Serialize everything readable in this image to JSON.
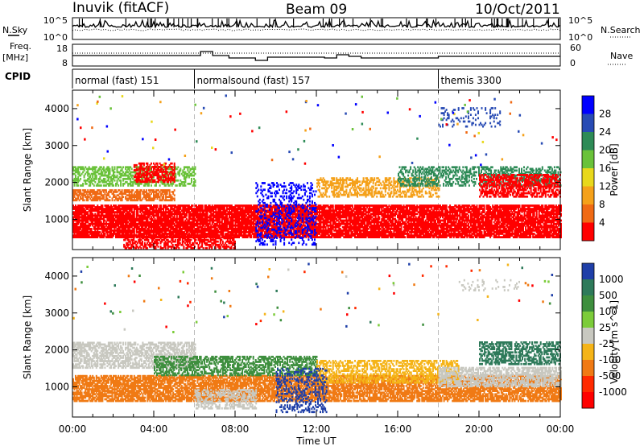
{
  "header": {
    "station": "Inuvik (fitACF)",
    "beam": "Beam 09",
    "date": "10/Oct/2011"
  },
  "status_panels": {
    "nsky_label": "N.Sky",
    "nsearch_label": "N.Search",
    "freq_label_line1": "Freq.",
    "freq_label_line2": "[MHz]",
    "nave_label": "Nave",
    "cpid_label": "CPID",
    "noise_left_ticks": [
      "10^5",
      "10^0"
    ],
    "noise_right_ticks": [
      "10^5",
      "10^0"
    ],
    "freq_left_ticks": [
      "18",
      "8"
    ],
    "freq_right_ticks": [
      "60",
      "0"
    ],
    "cpid_segments": [
      {
        "label": "normal (fast) 151",
        "start_hour": 0,
        "end_hour": 6
      },
      {
        "label": "normalsound (fast) 157",
        "start_hour": 6,
        "end_hour": 18
      },
      {
        "label": "themis 3300",
        "start_hour": 18,
        "end_hour": 24
      }
    ]
  },
  "chart_data": [
    {
      "type": "heatmap",
      "title": "",
      "xlabel": "Time UT",
      "ylabel": "Slant Range [km]",
      "x_ticks": [
        "00:00",
        "04:00",
        "08:00",
        "12:00",
        "16:00",
        "20:00",
        "00:00"
      ],
      "x_range_hours": [
        0,
        24
      ],
      "y_ticks": [
        1000,
        2000,
        3000,
        4000
      ],
      "ylim": [
        180,
        4500
      ],
      "colorbar": {
        "label": "Power [dB]",
        "ticks": [
          "4",
          "8",
          "12",
          "16",
          "20",
          "24",
          "28"
        ],
        "colors": [
          "#0000ff",
          "#284bb4",
          "#2e8b57",
          "#6ac23a",
          "#e8d81c",
          "#f5a11a",
          "#f06a14",
          "#ff0000"
        ]
      },
      "series": [
        {
          "name": "",
          "start_hour": 0,
          "end_hour": 24,
          "range_lo": 500,
          "range_hi": 1400,
          "color": "#ff0000",
          "density": 0.85
        },
        {
          "name": "",
          "start_hour": 0,
          "end_hour": 5,
          "range_lo": 1500,
          "range_hi": 1800,
          "color": "#f06a14",
          "density": 0.65
        },
        {
          "name": "",
          "start_hour": 0,
          "end_hour": 6,
          "range_lo": 1900,
          "range_hi": 2400,
          "color": "#6ac23a",
          "density": 0.5
        },
        {
          "name": "",
          "start_hour": 3,
          "end_hour": 5,
          "range_lo": 2000,
          "range_hi": 2500,
          "color": "#ff0000",
          "density": 0.55
        },
        {
          "name": "",
          "start_hour": 2.5,
          "end_hour": 8,
          "range_lo": 200,
          "range_hi": 600,
          "color": "#ff0000",
          "density": 0.55
        },
        {
          "name": "",
          "start_hour": 9,
          "end_hour": 12,
          "range_lo": 300,
          "range_hi": 2000,
          "color": "#0000ff",
          "density": 0.25
        },
        {
          "name": "",
          "start_hour": 12,
          "end_hour": 18,
          "range_lo": 1600,
          "range_hi": 2100,
          "color": "#f5a11a",
          "density": 0.45
        },
        {
          "name": "",
          "start_hour": 16,
          "end_hour": 24,
          "range_lo": 1900,
          "range_hi": 2400,
          "color": "#2e8b57",
          "density": 0.45
        },
        {
          "name": "",
          "start_hour": 20,
          "end_hour": 24,
          "range_lo": 1600,
          "range_hi": 2200,
          "color": "#ff0000",
          "density": 0.6
        },
        {
          "name": "",
          "start_hour": 18,
          "end_hour": 21,
          "range_lo": 3500,
          "range_hi": 4000,
          "color": "#284bb4",
          "density": 0.15
        }
      ]
    },
    {
      "type": "heatmap",
      "title": "",
      "xlabel": "Time UT",
      "ylabel": "Slant Range [km]",
      "x_ticks": [
        "00:00",
        "04:00",
        "08:00",
        "12:00",
        "16:00",
        "20:00",
        "00:00"
      ],
      "x_range_hours": [
        0,
        24
      ],
      "y_ticks": [
        1000,
        2000,
        3000,
        4000
      ],
      "ylim": [
        180,
        4500
      ],
      "colorbar": {
        "label": "Velocity [m s^-1]",
        "ticks": [
          "1000",
          "500",
          "100",
          "25",
          "-25",
          "-100",
          "-500",
          "-1000"
        ],
        "colors": [
          "#1f3fa8",
          "#2e7a5a",
          "#3e8f3e",
          "#7ccc3a",
          "#c8c8c0",
          "#f5b418",
          "#f07a14",
          "#ff2a00",
          "#ff0000"
        ]
      },
      "series": [
        {
          "name": "",
          "start_hour": 0,
          "end_hour": 24,
          "range_lo": 600,
          "range_hi": 1300,
          "color": "#f07a14",
          "density": 0.75
        },
        {
          "name": "",
          "start_hour": 0,
          "end_hour": 6,
          "range_lo": 1500,
          "range_hi": 2200,
          "color": "#c8c8c0",
          "density": 0.6
        },
        {
          "name": "",
          "start_hour": 4,
          "end_hour": 12,
          "range_lo": 1300,
          "range_hi": 1800,
          "color": "#3e8f3e",
          "density": 0.55
        },
        {
          "name": "",
          "start_hour": 6,
          "end_hour": 9,
          "range_lo": 400,
          "range_hi": 900,
          "color": "#c8c8c0",
          "density": 0.5
        },
        {
          "name": "",
          "start_hour": 12,
          "end_hour": 19,
          "range_lo": 1100,
          "range_hi": 1700,
          "color": "#f5b418",
          "density": 0.5
        },
        {
          "name": "",
          "start_hour": 18,
          "end_hour": 24,
          "range_lo": 1000,
          "range_hi": 1500,
          "color": "#c8c8c0",
          "density": 0.6
        },
        {
          "name": "",
          "start_hour": 20,
          "end_hour": 24,
          "range_lo": 1600,
          "range_hi": 2200,
          "color": "#2e7a5a",
          "density": 0.55
        },
        {
          "name": "",
          "start_hour": 10,
          "end_hour": 12.5,
          "range_lo": 300,
          "range_hi": 1500,
          "color": "#1f3fa8",
          "density": 0.3
        },
        {
          "name": "",
          "start_hour": 19,
          "end_hour": 22,
          "range_lo": 3600,
          "range_hi": 3900,
          "color": "#c8c8c0",
          "density": 0.15
        }
      ]
    }
  ]
}
